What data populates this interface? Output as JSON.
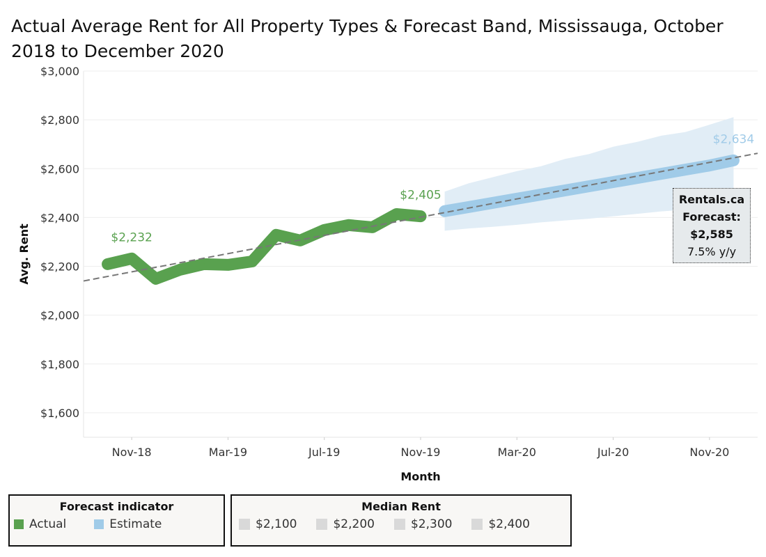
{
  "chart_data": {
    "type": "line",
    "title": "Actual Average Rent for All Property Types & Forecast Band, Mississauga, October 2018 to December 2020",
    "xlabel": "Month",
    "ylabel": "Avg. Rent",
    "ylim": [
      1500,
      3000
    ],
    "yticks": [
      "$1,600",
      "$1,800",
      "$2,000",
      "$2,200",
      "$2,400",
      "$2,600",
      "$2,800",
      "$3,000"
    ],
    "ytick_values": [
      1600,
      1800,
      2000,
      2200,
      2400,
      2600,
      2800,
      3000
    ],
    "xticks": [
      "Nov-18",
      "Mar-19",
      "Jul-19",
      "Nov-19",
      "Mar-20",
      "Jul-20",
      "Nov-20"
    ],
    "grid": true,
    "series": [
      {
        "name": "Actual",
        "color": "#59a14f",
        "x": [
          "Oct-18",
          "Nov-18",
          "Dec-18",
          "Jan-19",
          "Feb-19",
          "Mar-19",
          "Apr-19",
          "May-19",
          "Jun-19",
          "Jul-19",
          "Aug-19",
          "Sep-19",
          "Oct-19",
          "Nov-19"
        ],
        "values": [
          2209,
          2232,
          2149,
          2186,
          2209,
          2206,
          2220,
          2329,
          2306,
          2349,
          2369,
          2360,
          2414,
          2405
        ]
      },
      {
        "name": "Estimate",
        "color": "#a0cbe8",
        "x": [
          "Dec-19",
          "Jan-20",
          "Feb-20",
          "Mar-20",
          "Apr-20",
          "May-20",
          "Jun-20",
          "Jul-20",
          "Aug-20",
          "Sep-20",
          "Oct-20",
          "Nov-20",
          "Dec-20"
        ],
        "values": [
          2426,
          2443,
          2460,
          2477,
          2494,
          2511,
          2528,
          2545,
          2562,
          2579,
          2596,
          2613,
          2634
        ],
        "band_upper": [
          2506,
          2540,
          2565,
          2590,
          2610,
          2640,
          2660,
          2690,
          2710,
          2735,
          2750,
          2780,
          2811
        ],
        "band_lower": [
          2346,
          2355,
          2362,
          2370,
          2380,
          2388,
          2395,
          2405,
          2415,
          2425,
          2432,
          2440,
          2451
        ]
      }
    ],
    "trend_line": {
      "style": "dashed",
      "start": {
        "x": "Sep-18",
        "y": 2140
      },
      "end": {
        "x": "Jan-21",
        "y": 2663
      }
    },
    "data_labels": [
      {
        "x": "Nov-18",
        "text": "$2,232",
        "color": "#59a14f"
      },
      {
        "x": "Nov-19",
        "text": "$2,405",
        "color": "#59a14f"
      },
      {
        "x": "Dec-20",
        "text": "$2,634",
        "color": "#a0cbe8"
      }
    ],
    "annotation": {
      "lines": [
        "Rentals.ca",
        "Forecast:",
        "$2,585",
        "7.5% y/y"
      ]
    }
  },
  "legends": {
    "forecast": {
      "title": "Forecast indicator",
      "items": [
        {
          "label": "Actual",
          "color": "#59a14f"
        },
        {
          "label": "Estimate",
          "color": "#a0cbe8"
        }
      ]
    },
    "median": {
      "title": "Median Rent",
      "items": [
        {
          "label": "$2,100",
          "color": "#d9d9d9"
        },
        {
          "label": "$2,200",
          "color": "#d9d9d9"
        },
        {
          "label": "$2,300",
          "color": "#d9d9d9"
        },
        {
          "label": "$2,400",
          "color": "#d9d9d9"
        }
      ]
    }
  }
}
